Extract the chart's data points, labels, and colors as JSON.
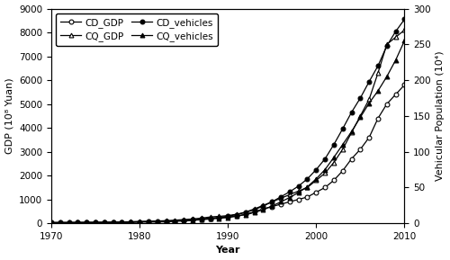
{
  "years": [
    1970,
    1971,
    1972,
    1973,
    1974,
    1975,
    1976,
    1977,
    1978,
    1979,
    1980,
    1981,
    1982,
    1983,
    1984,
    1985,
    1986,
    1987,
    1988,
    1989,
    1990,
    1991,
    1992,
    1993,
    1994,
    1995,
    1996,
    1997,
    1998,
    1999,
    2000,
    2001,
    2002,
    2003,
    2004,
    2005,
    2006,
    2007,
    2008,
    2009,
    2010
  ],
  "CD_GDP": [
    20,
    22,
    24,
    26,
    28,
    30,
    32,
    36,
    42,
    50,
    60,
    65,
    72,
    82,
    100,
    120,
    140,
    170,
    210,
    230,
    260,
    300,
    380,
    480,
    600,
    700,
    800,
    900,
    1000,
    1100,
    1300,
    1500,
    1800,
    2200,
    2700,
    3100,
    3600,
    4400,
    5000,
    5400,
    5800
  ],
  "CQ_GDP": [
    25,
    27,
    30,
    33,
    36,
    40,
    43,
    48,
    55,
    65,
    78,
    85,
    95,
    110,
    130,
    155,
    180,
    215,
    265,
    290,
    320,
    380,
    470,
    600,
    750,
    900,
    1050,
    1200,
    1350,
    1500,
    1800,
    2100,
    2550,
    3100,
    3800,
    4500,
    5200,
    6300,
    7500,
    7800,
    8100
  ],
  "CD_vehicles": [
    1,
    1,
    1,
    1,
    1,
    1,
    1,
    1,
    1,
    2,
    2,
    2,
    2,
    3,
    3,
    4,
    5,
    6,
    7,
    8,
    10,
    12,
    15,
    19,
    24,
    30,
    37,
    44,
    52,
    62,
    75,
    90,
    110,
    132,
    155,
    175,
    198,
    220,
    248,
    268,
    285
  ],
  "CQ_vehicles": [
    1,
    1,
    1,
    1,
    1,
    1,
    1,
    1,
    1,
    1,
    2,
    2,
    2,
    2,
    3,
    3,
    4,
    5,
    6,
    7,
    8,
    10,
    12,
    15,
    19,
    24,
    30,
    36,
    43,
    51,
    62,
    75,
    92,
    110,
    128,
    148,
    168,
    185,
    205,
    228,
    255
  ],
  "gdp_ylim": [
    0,
    9000
  ],
  "veh_ylim": [
    0,
    300
  ],
  "xlim": [
    1970,
    2010
  ],
  "gdp_yticks": [
    0,
    1000,
    2000,
    3000,
    4000,
    5000,
    6000,
    7000,
    8000,
    9000
  ],
  "veh_yticks": [
    0,
    50,
    100,
    150,
    200,
    250,
    300
  ],
  "xticks": [
    1970,
    1980,
    1990,
    2000,
    2010
  ],
  "xlabel": "Year",
  "ylabel_left": "GDP (10⁸ Yuan)",
  "ylabel_right": "Vehicular Population (10⁴)",
  "legend_labels": [
    "CD_GDP",
    "CQ_GDP",
    "CD_vehicles",
    "CQ_vehicles"
  ],
  "background_color": "#ffffff",
  "axis_fontsize": 8,
  "tick_fontsize": 7.5,
  "legend_fontsize": 7.5
}
